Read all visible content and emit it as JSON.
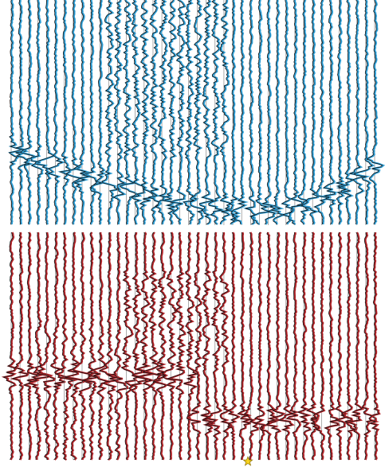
{
  "panels": [
    {
      "color": "#2f9fd6"
    },
    {
      "color": "#b3262b"
    }
  ],
  "marker": {
    "color": "#f7d21e"
  }
}
